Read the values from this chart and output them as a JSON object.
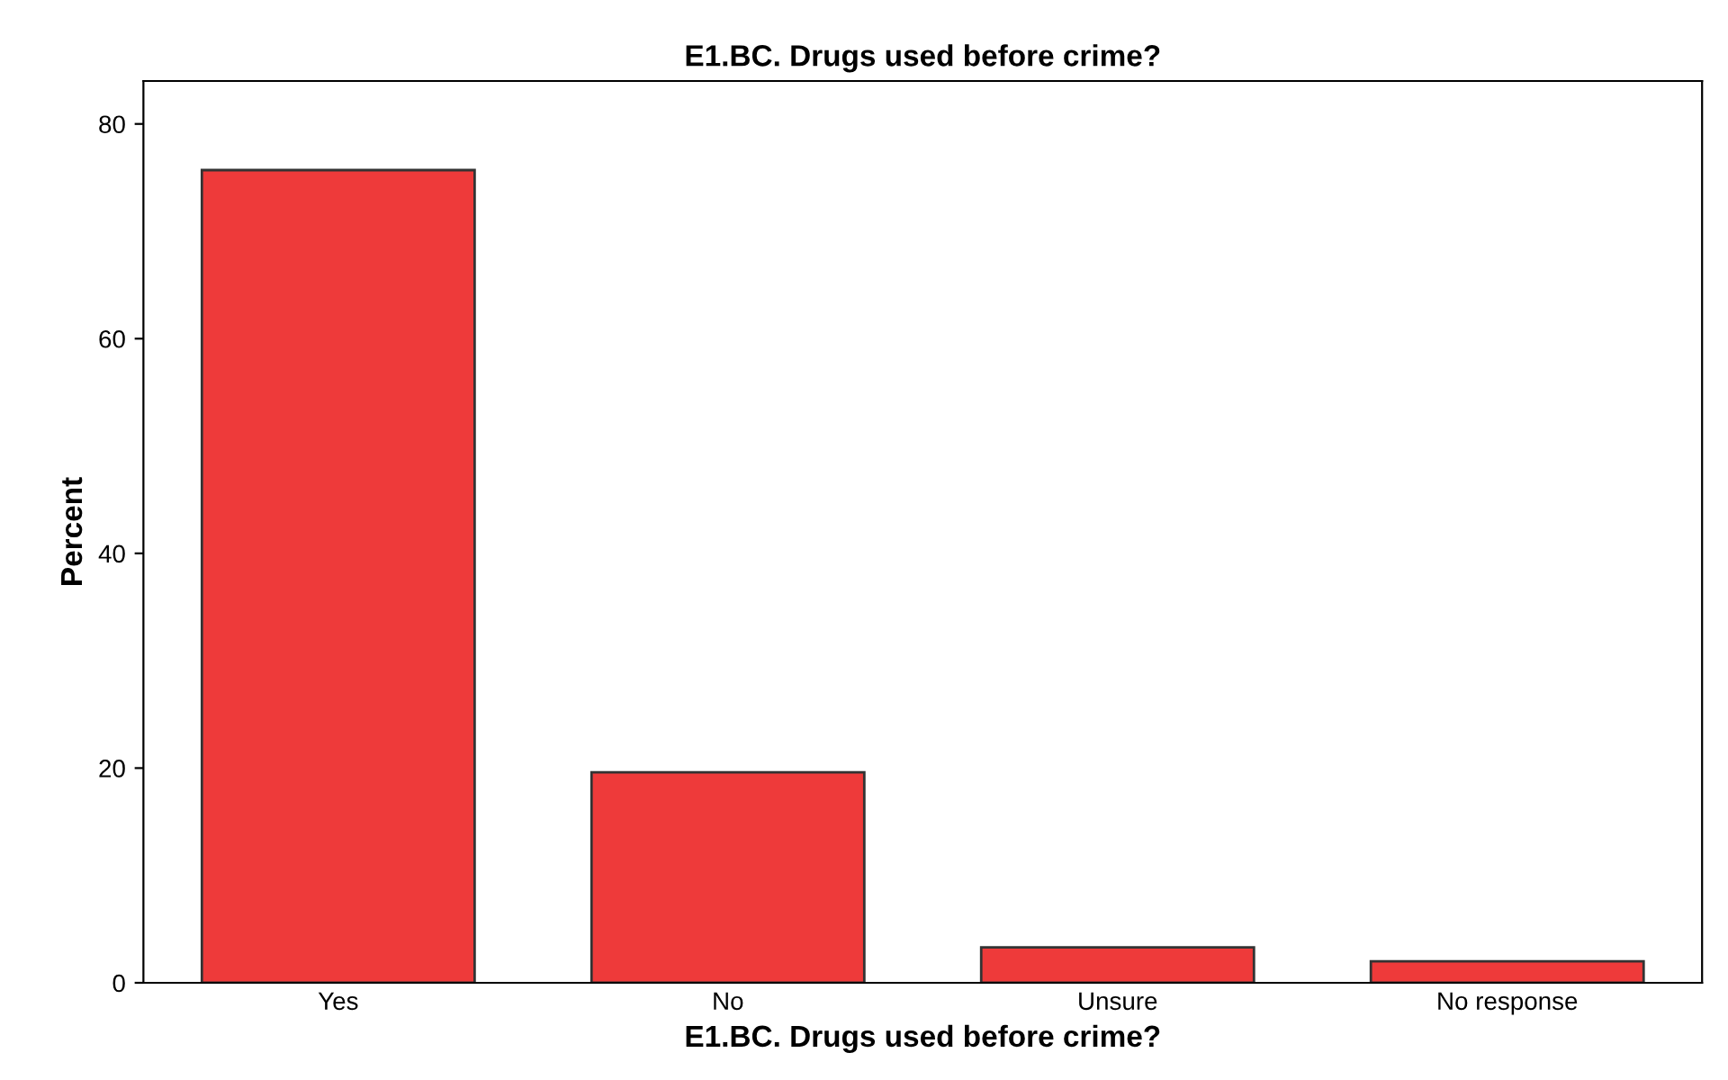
{
  "chart_data": {
    "type": "bar",
    "title": "E1.BC. Drugs used before crime?",
    "xlabel": "E1.BC. Drugs used before crime?",
    "ylabel": "Percent",
    "categories": [
      "Yes",
      "No",
      "Unsure",
      "No response"
    ],
    "values": [
      75.7,
      19.6,
      3.3,
      2.0
    ],
    "color": "#ee3a3a",
    "ylim": [
      0,
      84
    ],
    "yticks": [
      0,
      20,
      40,
      60,
      80
    ],
    "grid": false
  }
}
